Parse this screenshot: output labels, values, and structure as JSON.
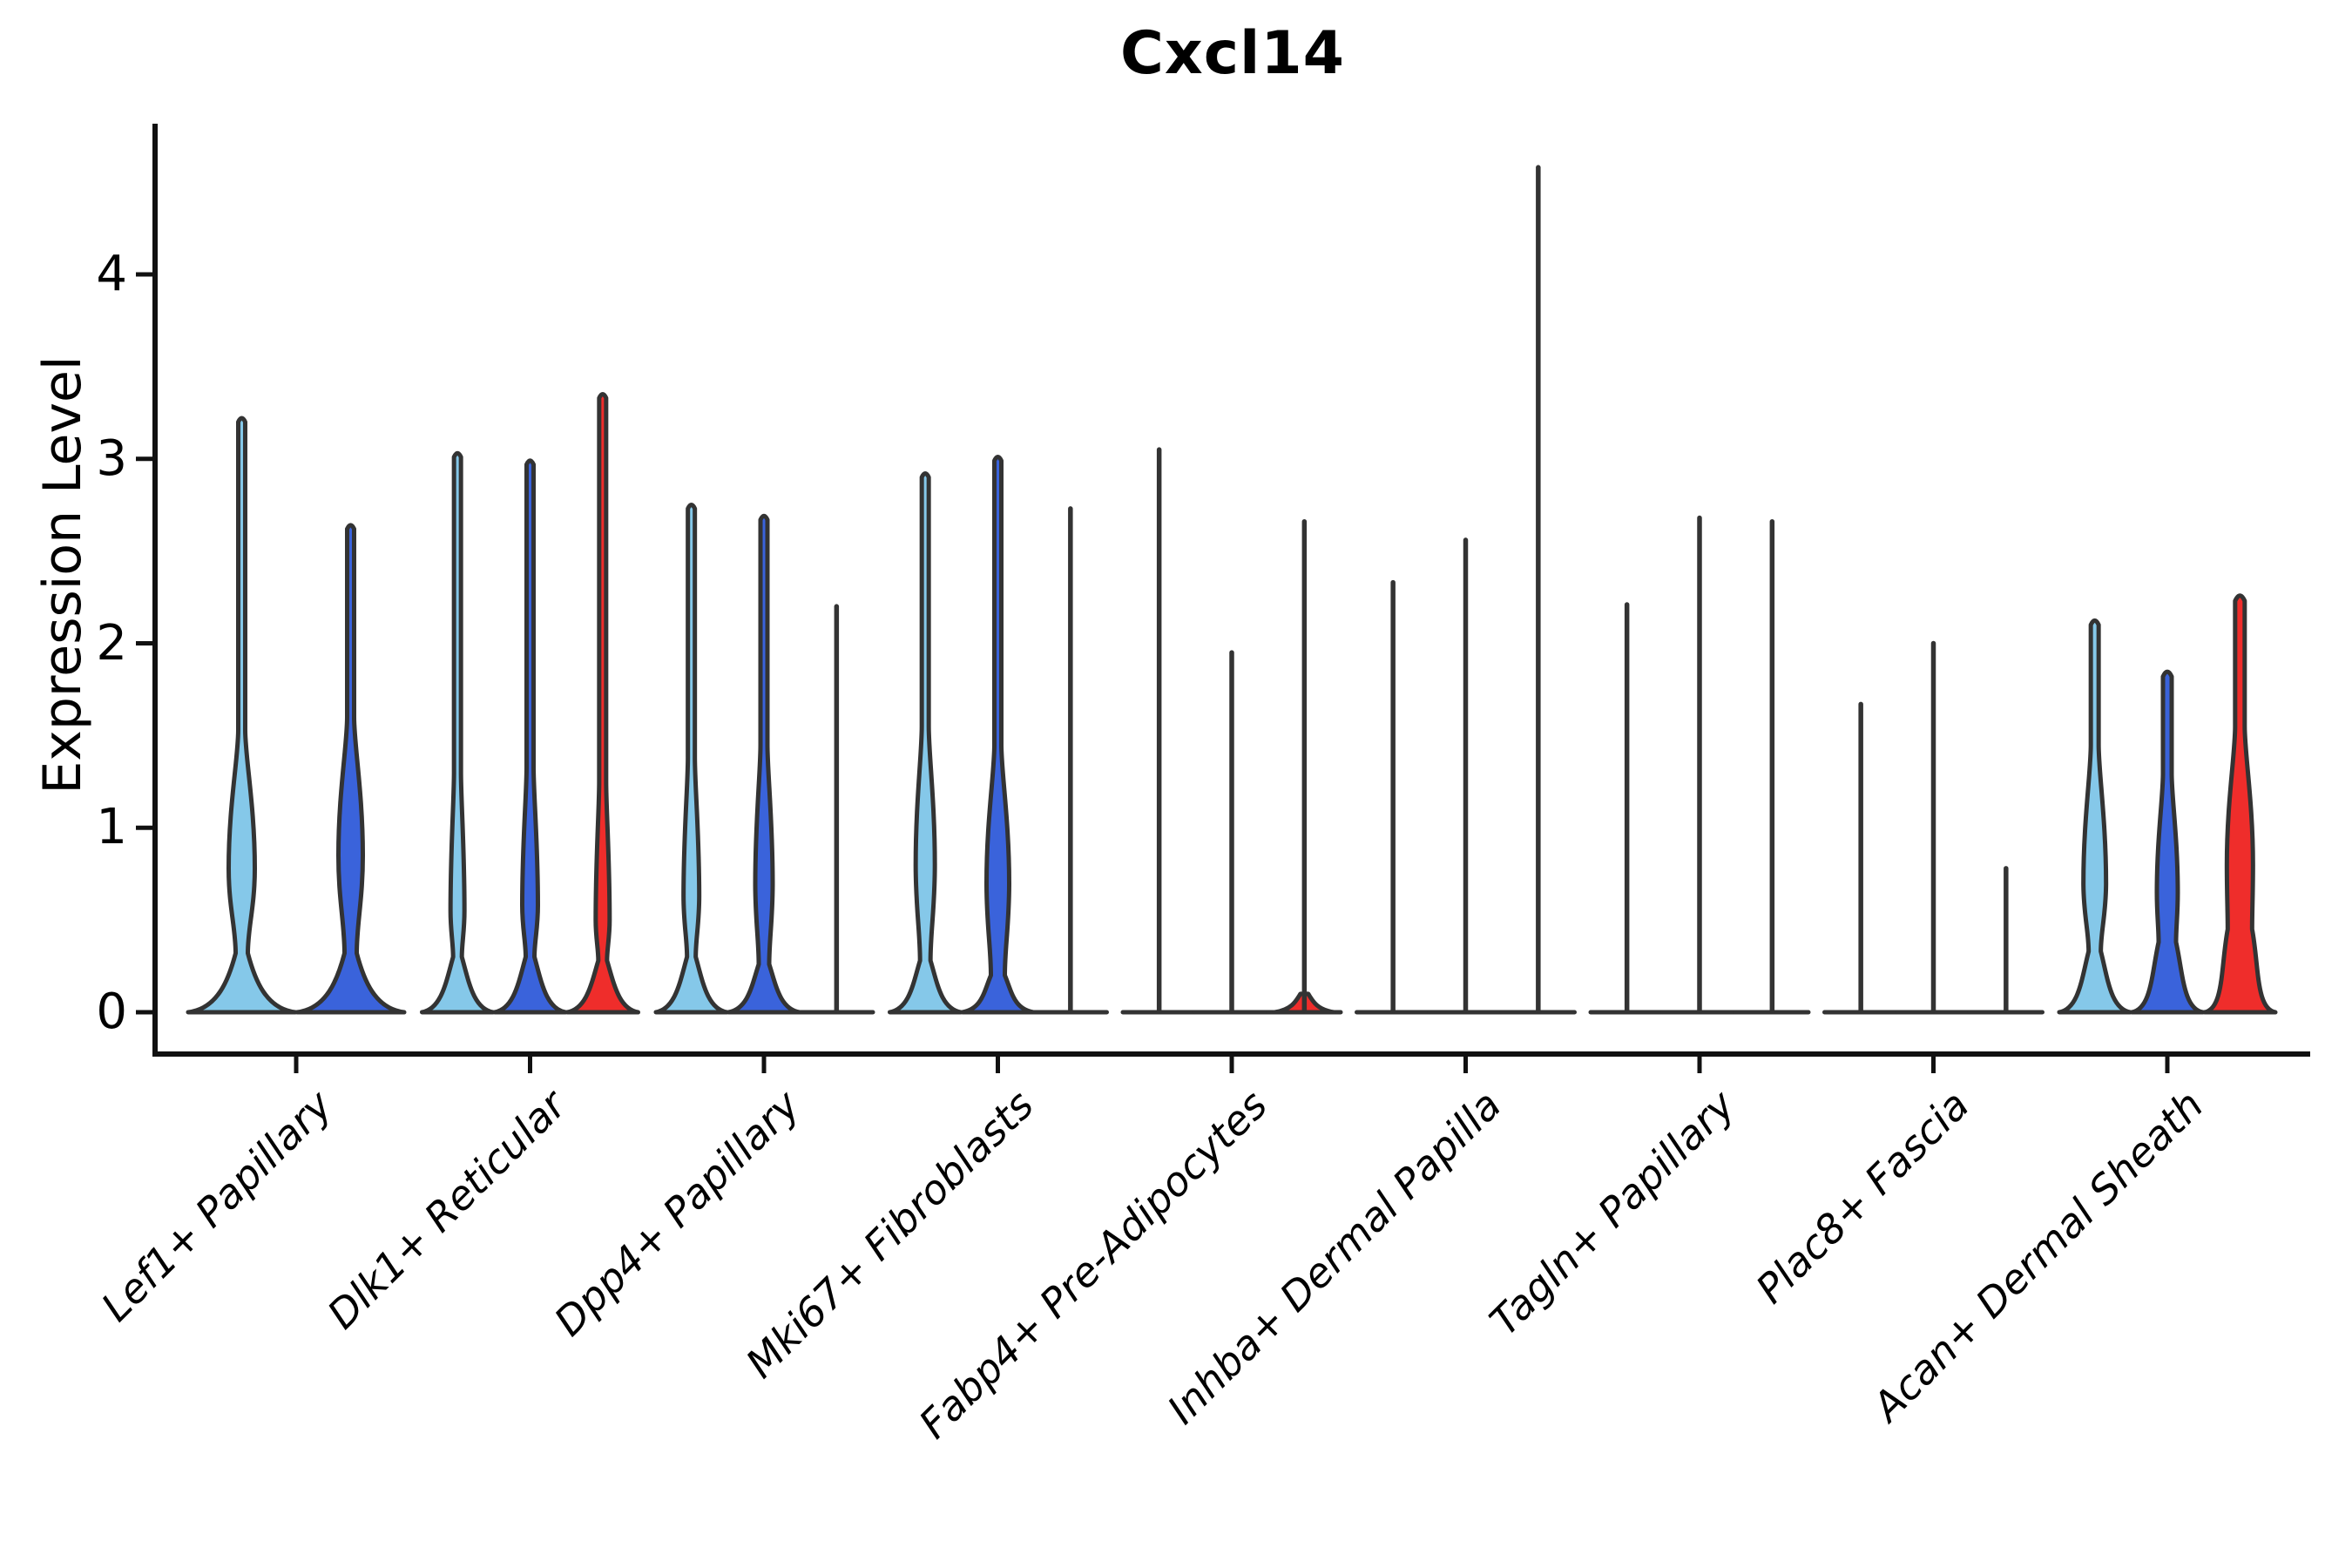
{
  "title": "Cxcl14",
  "y_axis": {
    "label": "Expression Level",
    "ticks": [
      "0",
      "1",
      "2",
      "3",
      "4"
    ]
  },
  "colors": {
    "light_blue": "#85C8E9",
    "dark_blue": "#3A63DB",
    "red": "#EF2D2B",
    "outline": "#333333",
    "axis": "#111111",
    "text": "#000000",
    "background": "#ffffff"
  },
  "chart_data": {
    "type": "violin",
    "title": "Cxcl14",
    "xlabel": "",
    "ylabel": "Expression Level",
    "ylim": [
      0,
      4.82
    ],
    "y_ticks": [
      0,
      1,
      2,
      3,
      4
    ],
    "grid": false,
    "legend": "none",
    "categories": [
      "Lef1+ Papillary",
      "Dlk1+ Reticular",
      "Dpp4+ Papillary",
      "Mki67+ Fibroblasts",
      "Fabp4+ Pre-Adipocytes",
      "Inhba+ Dermal Papilla",
      "Tagln+ Papillary",
      "Plac8+ Fascia",
      "Acan+ Dermal Sheath"
    ],
    "groups": [
      {
        "category": "Lef1+ Papillary",
        "violins": [
          {
            "split": "light_blue",
            "shape": "violin",
            "max": 3.2,
            "neck_v": 0.32,
            "neck_hw": 7,
            "bulge_v": 0.78,
            "bulge_hw": 15,
            "spike_hw": 4
          },
          {
            "split": "dark_blue",
            "shape": "violin",
            "max": 2.62,
            "neck_v": 0.32,
            "neck_hw": 7,
            "bulge_v": 0.85,
            "bulge_hw": 14,
            "spike_hw": 4
          }
        ]
      },
      {
        "category": "Dlk1+ Reticular",
        "violins": [
          {
            "split": "light_blue",
            "shape": "violin",
            "max": 3.01,
            "neck_v": 0.3,
            "neck_hw": 5,
            "bulge_v": 0.55,
            "bulge_hw": 8,
            "spike_hw": 4
          },
          {
            "split": "dark_blue",
            "shape": "violin",
            "max": 2.97,
            "neck_v": 0.3,
            "neck_hw": 5,
            "bulge_v": 0.58,
            "bulge_hw": 9,
            "spike_hw": 4
          },
          {
            "split": "red",
            "shape": "violin",
            "max": 3.33,
            "neck_v": 0.28,
            "neck_hw": 5,
            "bulge_v": 0.5,
            "bulge_hw": 8,
            "spike_hw": 4
          }
        ]
      },
      {
        "category": "Dpp4+ Papillary",
        "violins": [
          {
            "split": "light_blue",
            "shape": "violin",
            "max": 2.73,
            "neck_v": 0.3,
            "neck_hw": 5,
            "bulge_v": 0.63,
            "bulge_hw": 9,
            "spike_hw": 4
          },
          {
            "split": "dark_blue",
            "shape": "violin",
            "max": 2.67,
            "neck_v": 0.26,
            "neck_hw": 6,
            "bulge_v": 0.7,
            "bulge_hw": 10,
            "spike_hw": 4
          },
          {
            "split": "red",
            "shape": "line",
            "max": 2.2,
            "bump": false
          }
        ]
      },
      {
        "category": "Mki67+ Fibroblasts",
        "violins": [
          {
            "split": "light_blue",
            "shape": "violin",
            "max": 2.9,
            "neck_v": 0.28,
            "neck_hw": 6,
            "bulge_v": 0.8,
            "bulge_hw": 11,
            "spike_hw": 4
          },
          {
            "split": "dark_blue",
            "shape": "violin",
            "max": 2.99,
            "neck_v": 0.2,
            "neck_hw": 8,
            "bulge_v": 0.7,
            "bulge_hw": 13,
            "spike_hw": 4
          },
          {
            "split": "red",
            "shape": "line",
            "max": 2.73,
            "bump": false
          }
        ]
      },
      {
        "category": "Fabp4+ Pre-Adipocytes",
        "violins": [
          {
            "split": "light_blue",
            "shape": "line",
            "max": 3.05,
            "bump": false
          },
          {
            "split": "dark_blue",
            "shape": "line",
            "max": 1.95,
            "bump": false
          },
          {
            "split": "red",
            "shape": "line",
            "max": 2.66,
            "bump": true,
            "bump_v": 0.1,
            "bump_hw": 34
          }
        ]
      },
      {
        "category": "Inhba+ Dermal Papilla",
        "violins": [
          {
            "split": "light_blue",
            "shape": "line",
            "max": 2.33,
            "bump": false
          },
          {
            "split": "dark_blue",
            "shape": "line",
            "max": 2.56,
            "bump": false
          },
          {
            "split": "red",
            "shape": "line",
            "max": 4.58,
            "bump": false
          }
        ]
      },
      {
        "category": "Tagln+ Papillary",
        "violins": [
          {
            "split": "light_blue",
            "shape": "line",
            "max": 2.21,
            "bump": false
          },
          {
            "split": "dark_blue",
            "shape": "line",
            "max": 2.68,
            "bump": false
          },
          {
            "split": "red",
            "shape": "line",
            "max": 2.66,
            "bump": false
          }
        ]
      },
      {
        "category": "Plac8+ Fascia",
        "violins": [
          {
            "split": "light_blue",
            "shape": "line",
            "max": 1.67,
            "bump": false
          },
          {
            "split": "dark_blue",
            "shape": "line",
            "max": 2.0,
            "bump": false
          },
          {
            "split": "red",
            "shape": "line",
            "max": 0.78,
            "bump": false
          }
        ]
      },
      {
        "category": "Acan+ Dermal Sheath",
        "violins": [
          {
            "split": "light_blue",
            "shape": "violin",
            "max": 2.1,
            "neck_v": 0.33,
            "neck_hw": 7,
            "bulge_v": 0.7,
            "bulge_hw": 13,
            "spike_hw": 4.5
          },
          {
            "split": "dark_blue",
            "shape": "violin",
            "max": 1.82,
            "neck_v": 0.38,
            "neck_hw": 10,
            "bulge_v": 0.65,
            "bulge_hw": 12,
            "spike_hw": 5
          },
          {
            "split": "red",
            "shape": "violin",
            "max": 2.23,
            "neck_v": 0.45,
            "neck_hw": 14,
            "bulge_v": 0.8,
            "bulge_hw": 15,
            "spike_hw": 5.5
          }
        ]
      }
    ]
  }
}
